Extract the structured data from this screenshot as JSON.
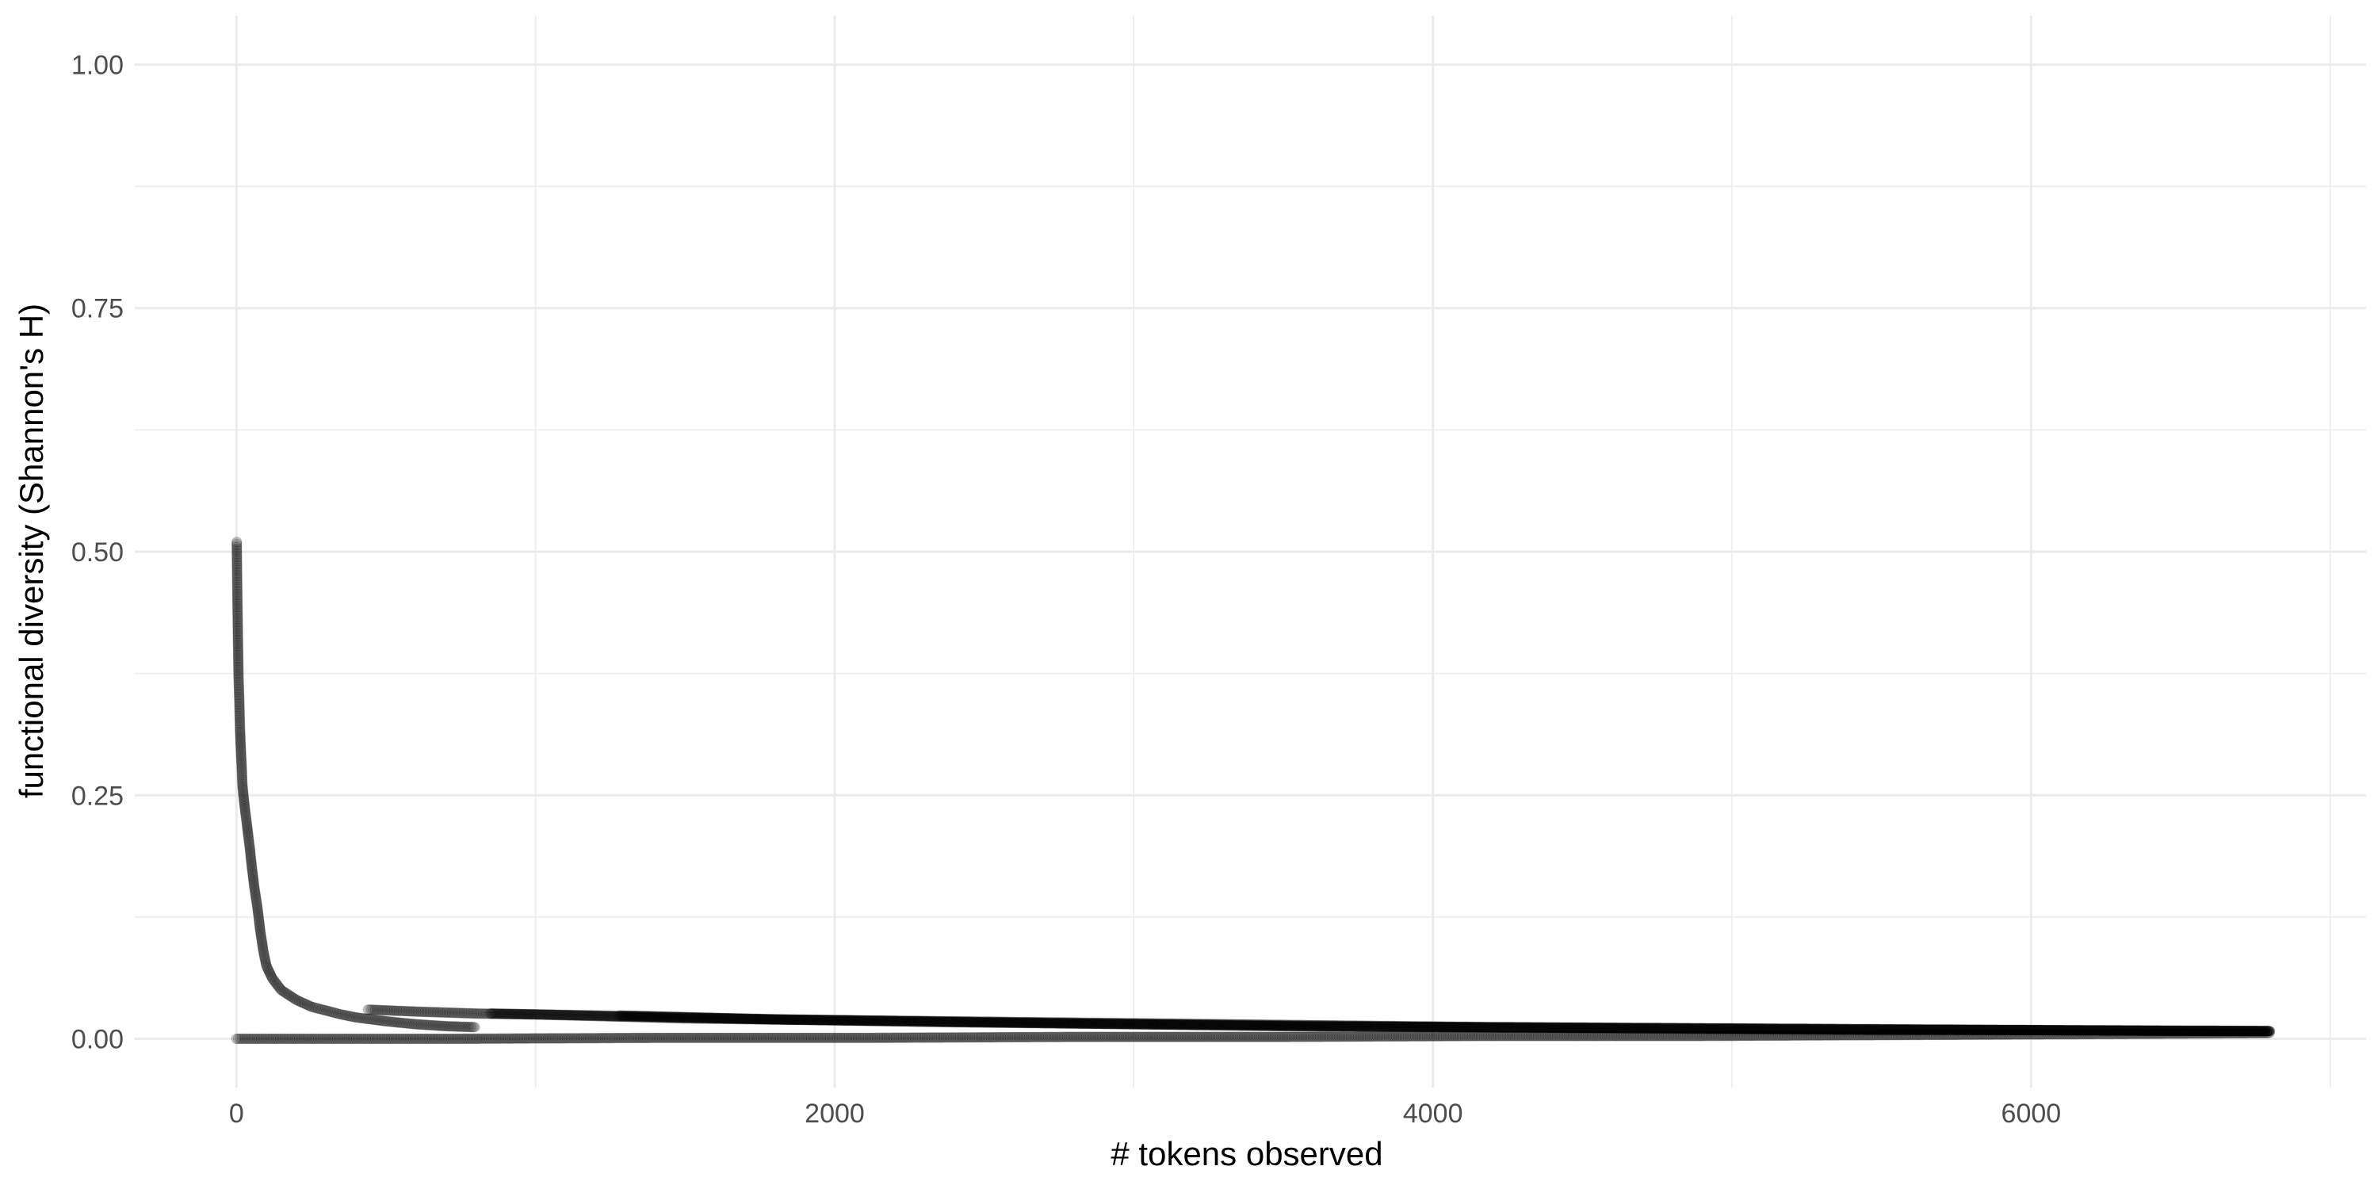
{
  "chart_data": {
    "type": "scatter",
    "title": "",
    "xlabel": "# tokens observed",
    "ylabel": "functional diversity (Shannon's H)",
    "xlim": [
      -340,
      7120
    ],
    "ylim": [
      -0.05,
      1.05
    ],
    "x_ticks": [
      0,
      2000,
      4000,
      6000
    ],
    "x_tick_labels": [
      "0",
      "2000",
      "4000",
      "6000"
    ],
    "y_ticks": [
      0,
      0.25,
      0.5,
      0.75,
      1.0
    ],
    "y_tick_labels": [
      "0.00",
      "0.25",
      "0.50",
      "0.75",
      "1.00"
    ],
    "grid": true,
    "point_color": "#000000",
    "point_alpha": 0.15,
    "series": [
      {
        "x": [
          1,
          3,
          5,
          7,
          10,
          12,
          15,
          18,
          20,
          25,
          30,
          35,
          40,
          45,
          50,
          60,
          70,
          80,
          90,
          100,
          120,
          150,
          200,
          250,
          300,
          350,
          400,
          500,
          600,
          700,
          800
        ],
        "y": [
          0.51,
          0.455,
          0.41,
          0.372,
          0.342,
          0.317,
          0.295,
          0.276,
          0.26,
          0.245,
          0.232,
          0.22,
          0.207,
          0.195,
          0.18,
          0.155,
          0.135,
          0.11,
          0.09,
          0.075,
          0.062,
          0.05,
          0.04,
          0.033,
          0.029,
          0.025,
          0.022,
          0.018,
          0.015,
          0.013,
          0.012
        ]
      },
      {
        "x": [
          440,
          600,
          800,
          1000,
          1500,
          2000,
          2500,
          3000,
          3500,
          4000,
          4500,
          5000,
          5500,
          6000,
          6500,
          6800
        ],
        "y": [
          0.03,
          0.028,
          0.026,
          0.025,
          0.021,
          0.019,
          0.017,
          0.015,
          0.013,
          0.012,
          0.011,
          0.01,
          0.009,
          0.009,
          0.008,
          0.008
        ]
      },
      {
        "x": [
          850,
          1200,
          1800,
          2400,
          3000,
          3600,
          4200,
          4800,
          5400,
          6000,
          6800
        ],
        "y": [
          0.026,
          0.024,
          0.02,
          0.017,
          0.015,
          0.013,
          0.012,
          0.011,
          0.01,
          0.009,
          0.008
        ]
      },
      {
        "x": [
          1280,
          1800,
          2400,
          3000,
          3600,
          4200,
          4800,
          5400,
          6000,
          6800
        ],
        "y": [
          0.024,
          0.02,
          0.018,
          0.016,
          0.014,
          0.012,
          0.011,
          0.01,
          0.009,
          0.008
        ]
      },
      {
        "x": [
          0,
          700,
          1400,
          2100,
          2800,
          3500,
          4200,
          4900,
          5600,
          6300,
          6800
        ],
        "y": [
          0.0,
          0.0,
          0.001,
          0.001,
          0.002,
          0.002,
          0.003,
          0.003,
          0.004,
          0.005,
          0.006
        ]
      }
    ]
  }
}
